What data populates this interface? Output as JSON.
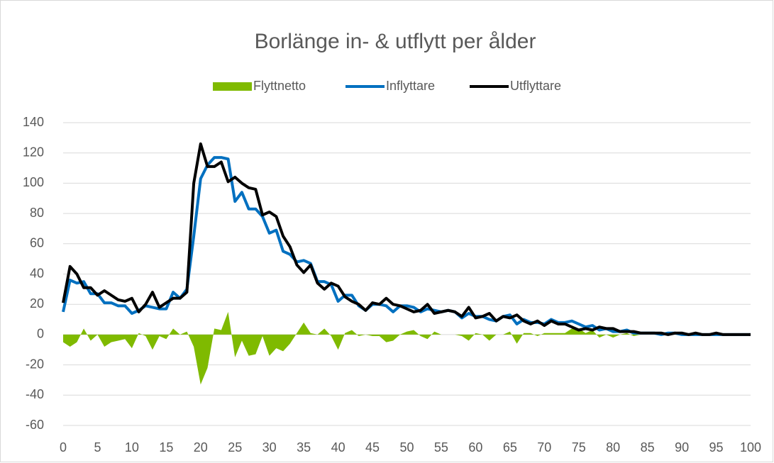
{
  "chart_data": {
    "type": "line",
    "title": "Borlänge in- & utflytt per ålder",
    "x": [
      0,
      1,
      2,
      3,
      4,
      5,
      6,
      7,
      8,
      9,
      10,
      11,
      12,
      13,
      14,
      15,
      16,
      17,
      18,
      19,
      20,
      21,
      22,
      23,
      24,
      25,
      26,
      27,
      28,
      29,
      30,
      31,
      32,
      33,
      34,
      35,
      36,
      37,
      38,
      39,
      40,
      41,
      42,
      43,
      44,
      45,
      46,
      47,
      48,
      49,
      50,
      51,
      52,
      53,
      54,
      55,
      56,
      57,
      58,
      59,
      60,
      61,
      62,
      63,
      64,
      65,
      66,
      67,
      68,
      69,
      70,
      71,
      72,
      73,
      74,
      75,
      76,
      77,
      78,
      79,
      80,
      81,
      82,
      83,
      84,
      85,
      86,
      87,
      88,
      89,
      90,
      91,
      92,
      93,
      94,
      95,
      96,
      97,
      98,
      99,
      100
    ],
    "series": [
      {
        "name": "Flyttnetto",
        "kind": "area",
        "color": "#7fba00",
        "values": [
          -5,
          -8,
          -5,
          4,
          -4,
          0,
          -8,
          -5,
          -4,
          -3,
          -9,
          1,
          -1,
          -10,
          -1,
          -3,
          4,
          0,
          2,
          -8,
          -33,
          -22,
          4,
          3,
          15,
          -15,
          -4,
          -14,
          -13,
          -1,
          -14,
          -9,
          -11,
          -6,
          1,
          8,
          1,
          0,
          4,
          -1,
          -10,
          1,
          3,
          -1,
          0,
          -1,
          -1,
          -5,
          -4,
          0,
          2,
          3,
          -1,
          -3,
          2,
          0,
          0,
          0,
          -1,
          -4,
          1,
          0,
          -4,
          0,
          0,
          2,
          -6,
          1,
          1,
          -1,
          1,
          1,
          1,
          1,
          4,
          4,
          1,
          3,
          -2,
          0,
          -2,
          0,
          1,
          -1,
          0,
          0,
          0,
          0,
          0,
          0,
          0,
          0,
          0,
          0,
          0,
          0,
          0,
          0,
          0,
          0,
          0
        ]
      },
      {
        "name": "Inflyttare",
        "kind": "line",
        "color": "#0070c0",
        "values": [
          15,
          36,
          34,
          35,
          27,
          27,
          21,
          21,
          19,
          19,
          14,
          16,
          19,
          18,
          17,
          17,
          28,
          24,
          30,
          65,
          103,
          112,
          117,
          117,
          116,
          88,
          94,
          83,
          83,
          78,
          67,
          69,
          55,
          53,
          48,
          49,
          47,
          35,
          35,
          33,
          22,
          26,
          26,
          19,
          16,
          20,
          20,
          19,
          15,
          19,
          19,
          18,
          15,
          17,
          16,
          15,
          16,
          15,
          11,
          14,
          12,
          12,
          10,
          9,
          12,
          13,
          7,
          10,
          8,
          8,
          7,
          10,
          8,
          8,
          9,
          7,
          5,
          6,
          3,
          4,
          2,
          2,
          3,
          1,
          1,
          1,
          1,
          0,
          1,
          1,
          0,
          0,
          0,
          0,
          0,
          0,
          0,
          0,
          0,
          0,
          0
        ]
      },
      {
        "name": "Utflyttare",
        "kind": "line",
        "color": "#000000",
        "values": [
          21,
          45,
          40,
          31,
          31,
          26,
          29,
          26,
          23,
          22,
          24,
          15,
          20,
          28,
          18,
          21,
          24,
          24,
          28,
          100,
          126,
          111,
          111,
          114,
          101,
          104,
          100,
          97,
          96,
          79,
          81,
          78,
          65,
          58,
          46,
          41,
          46,
          34,
          30,
          34,
          32,
          25,
          22,
          20,
          16,
          21,
          20,
          24,
          20,
          19,
          17,
          15,
          16,
          20,
          14,
          15,
          16,
          15,
          12,
          18,
          11,
          12,
          14,
          9,
          12,
          11,
          13,
          9,
          7,
          9,
          6,
          9,
          7,
          7,
          5,
          3,
          4,
          3,
          5,
          4,
          4,
          2,
          2,
          2,
          1,
          1,
          1,
          1,
          0,
          1,
          1,
          0,
          1,
          0,
          0,
          1,
          0,
          0,
          0,
          0,
          0
        ]
      }
    ],
    "xlim": [
      0,
      100
    ],
    "xticks": [
      0,
      5,
      10,
      15,
      20,
      25,
      30,
      35,
      40,
      45,
      50,
      55,
      60,
      65,
      70,
      75,
      80,
      85,
      90,
      95,
      100
    ],
    "ylim": [
      -60,
      140
    ],
    "yticks": [
      -60,
      -40,
      -20,
      0,
      20,
      40,
      60,
      80,
      100,
      120,
      140
    ],
    "grid": true,
    "legend": "top"
  }
}
